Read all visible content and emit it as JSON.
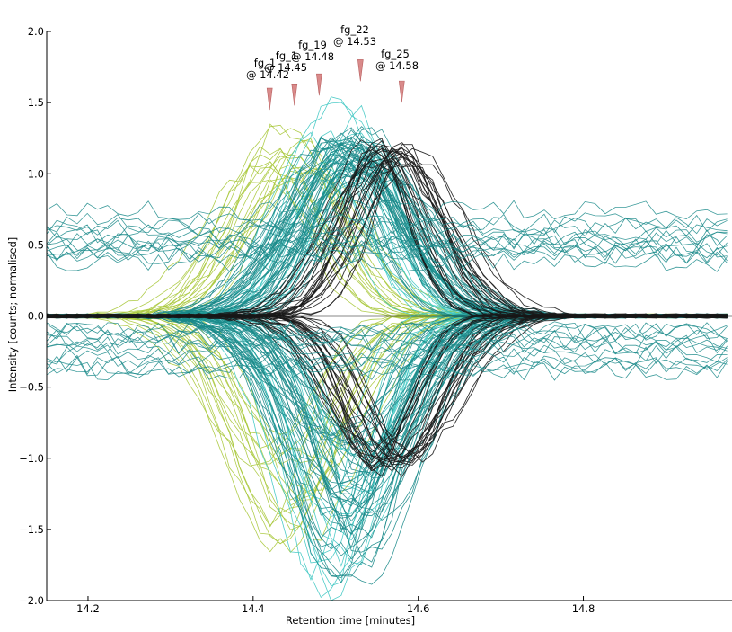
{
  "chart_data": {
    "type": "line",
    "title": "",
    "xlabel": "Retention time [minutes]",
    "ylabel": "Intensity [counts; normalised]",
    "xlim": [
      14.15,
      14.98
    ],
    "ylim": [
      -2.0,
      2.0
    ],
    "x_ticks": [
      14.2,
      14.4,
      14.6,
      14.8
    ],
    "x_tick_labels": [
      "14.2",
      "14.4",
      "14.6",
      "14.8"
    ],
    "y_ticks": [
      -2.0,
      -1.5,
      -1.0,
      -0.5,
      0.0,
      0.5,
      1.0,
      1.5,
      2.0
    ],
    "y_tick_labels": [
      "−2.0",
      "−1.5",
      "−1.0",
      "−0.5",
      "0.0",
      "0.5",
      "1.0",
      "1.5",
      "2.0"
    ],
    "grid": false,
    "mirrored": true,
    "colors": {
      "yellowgreen": "#a8c83a",
      "teal": "#1a8a8a",
      "cyan": "#3cc6c2",
      "black": "#1a1a1a",
      "marker": "#d98a8a"
    },
    "annotations": [
      {
        "label": "fg_1",
        "time": "@ 14.42",
        "x": 14.42
      },
      {
        "label": "fg_1",
        "time": "@ 14.45",
        "x": 14.45
      },
      {
        "label": "fg_19",
        "time": "@ 14.48",
        "x": 14.48
      },
      {
        "label": "fg_22",
        "time": "@ 14.53",
        "x": 14.53
      },
      {
        "label": "fg_25",
        "time": "@ 14.58",
        "x": 14.58
      }
    ],
    "series_groups": [
      {
        "group": "yellowgreen",
        "color": "#a8c83a",
        "apex": 14.44,
        "width": 0.055,
        "count": 18,
        "height_range": [
          0.95,
          1.35
        ],
        "neg_range": [
          0.9,
          1.65
        ]
      },
      {
        "group": "cyan",
        "color": "#3cc6c2",
        "apex": 14.5,
        "width": 0.05,
        "count": 16,
        "height_range": [
          0.9,
          1.6
        ],
        "neg_range": [
          0.9,
          2.0
        ]
      },
      {
        "group": "teal",
        "color": "#1a8a8a",
        "apex": 14.52,
        "width": 0.055,
        "count": 44,
        "height_range": [
          1.0,
          1.3
        ],
        "neg_range": [
          0.8,
          1.9
        ]
      },
      {
        "group": "black",
        "color": "#1a1a1a",
        "apex": 14.57,
        "width": 0.05,
        "count": 24,
        "height_range": [
          1.05,
          1.25
        ],
        "neg_range": [
          0.95,
          1.1
        ]
      },
      {
        "group": "baseline",
        "color": "#1a8a8a",
        "apex": 0,
        "width": 0,
        "count": 14,
        "height_range": [
          0.3,
          0.75
        ],
        "neg_range": [
          0.1,
          0.4
        ]
      }
    ]
  }
}
